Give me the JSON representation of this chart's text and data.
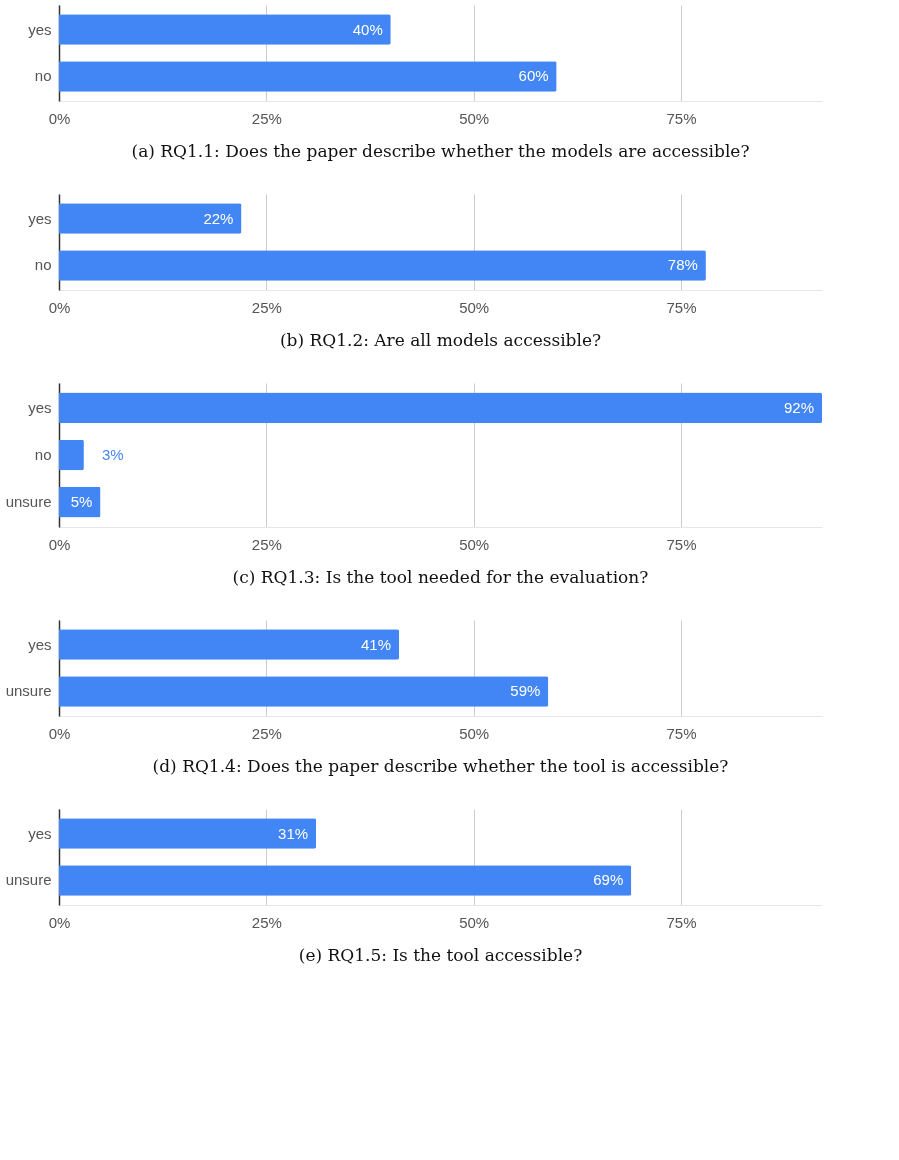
{
  "chart_data": [
    {
      "type": "bar",
      "orientation": "horizontal",
      "title": "(a) RQ1.1: Does the paper describe whether the models are accessible?",
      "categories": [
        "yes",
        "no"
      ],
      "values": [
        40,
        60
      ],
      "color": "#4285f4",
      "data_labels": true,
      "value_labels": [
        "40%",
        "60%"
      ],
      "xlim": [
        0,
        92
      ],
      "xticks": [
        {
          "value": 0,
          "label": "0%"
        },
        {
          "value": 25,
          "label": "25%"
        },
        {
          "value": 50,
          "label": "50%"
        },
        {
          "value": 75,
          "label": "75%"
        }
      ],
      "grid": "x",
      "legend": false
    },
    {
      "type": "bar",
      "orientation": "horizontal",
      "title": "(b) RQ1.2: Are all models accessible?",
      "categories": [
        "yes",
        "no"
      ],
      "values": [
        22,
        78
      ],
      "color": "#4285f4",
      "data_labels": true,
      "value_labels": [
        "22%",
        "78%"
      ],
      "xlim": [
        0,
        92
      ],
      "xticks": [
        {
          "value": 0,
          "label": "0%"
        },
        {
          "value": 25,
          "label": "25%"
        },
        {
          "value": 50,
          "label": "50%"
        },
        {
          "value": 75,
          "label": "75%"
        }
      ],
      "grid": "x",
      "legend": false
    },
    {
      "type": "bar",
      "orientation": "horizontal",
      "title": "(c) RQ1.3: Is the tool needed for the evaluation?",
      "categories": [
        "yes",
        "no",
        "unsure"
      ],
      "values": [
        92,
        3,
        5
      ],
      "color": "#4285f4",
      "data_labels": true,
      "value_labels": [
        "92%",
        "3%",
        "5%"
      ],
      "xlim": [
        0,
        92
      ],
      "xticks": [
        {
          "value": 0,
          "label": "0%"
        },
        {
          "value": 25,
          "label": "25%"
        },
        {
          "value": 50,
          "label": "50%"
        },
        {
          "value": 75,
          "label": "75%"
        }
      ],
      "grid": "x",
      "legend": false
    },
    {
      "type": "bar",
      "orientation": "horizontal",
      "title": "(d) RQ1.4: Does the paper describe whether the tool is accessible?",
      "categories": [
        "yes",
        "unsure"
      ],
      "values": [
        41,
        59
      ],
      "color": "#4285f4",
      "data_labels": true,
      "value_labels": [
        "41%",
        "59%"
      ],
      "xlim": [
        0,
        92
      ],
      "xticks": [
        {
          "value": 0,
          "label": "0%"
        },
        {
          "value": 25,
          "label": "25%"
        },
        {
          "value": 50,
          "label": "50%"
        },
        {
          "value": 75,
          "label": "75%"
        }
      ],
      "grid": "x",
      "legend": false
    },
    {
      "type": "bar",
      "orientation": "horizontal",
      "title": "(e) RQ1.5: Is the tool accessible?",
      "categories": [
        "yes",
        "unsure"
      ],
      "values": [
        31,
        69
      ],
      "color": "#4285f4",
      "data_labels": true,
      "value_labels": [
        "31%",
        "69%"
      ],
      "xlim": [
        0,
        92
      ],
      "xticks": [
        {
          "value": 0,
          "label": "0%"
        },
        {
          "value": 25,
          "label": "25%"
        },
        {
          "value": 50,
          "label": "50%"
        },
        {
          "value": 75,
          "label": "75%"
        }
      ],
      "grid": "x",
      "legend": false
    }
  ]
}
